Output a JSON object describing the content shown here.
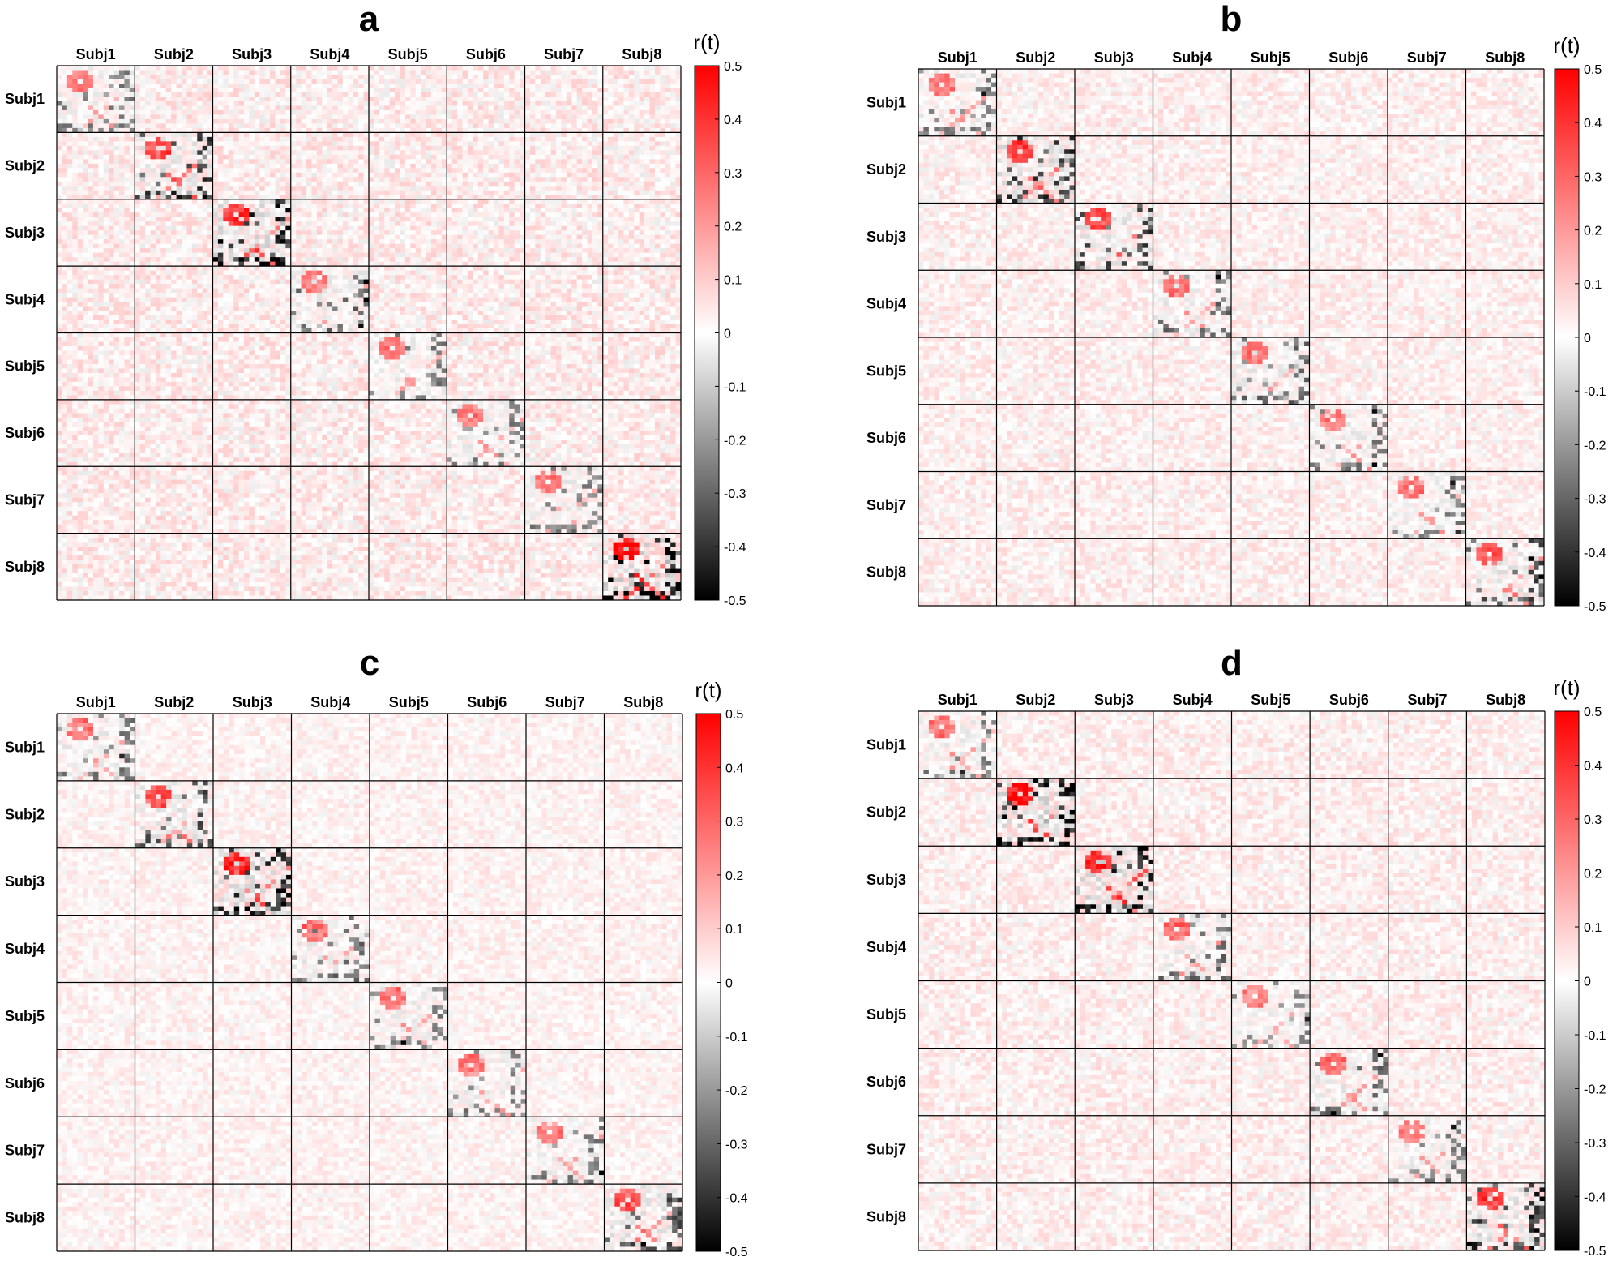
{
  "chart_data": [
    {
      "panel": "a",
      "type": "heatmap",
      "title": "a",
      "rows": [
        "Subj1",
        "Subj2",
        "Subj3",
        "Subj4",
        "Subj5",
        "Subj6",
        "Subj7",
        "Subj8"
      ],
      "columns": [
        "Subj1",
        "Subj2",
        "Subj3",
        "Subj4",
        "Subj5",
        "Subj6",
        "Subj7",
        "Subj8"
      ],
      "block_size": 15,
      "colorbar": {
        "label": "r(t)",
        "ticks": [
          0.5,
          0.4,
          0.3,
          0.2,
          0.1,
          0,
          -0.1,
          -0.2,
          -0.3,
          -0.4,
          -0.5
        ],
        "tick_labels": [
          "0.5",
          "0.4",
          "0.3",
          "0.2",
          "0.1",
          "0",
          "-0.1",
          "-0.2",
          "-0.3",
          "-0.4",
          "-0.5"
        ],
        "range": [
          -0.5,
          0.5
        ],
        "colormap": [
          "#000000",
          "#ffffff",
          "#ff0000"
        ]
      },
      "diagonal_block_strength": [
        0.45,
        0.7,
        0.8,
        0.5,
        0.45,
        0.45,
        0.45,
        0.95
      ],
      "off_diagonal_noise": 0.06
    },
    {
      "panel": "b",
      "type": "heatmap",
      "title": "b",
      "rows": [
        "Subj1",
        "Subj2",
        "Subj3",
        "Subj4",
        "Subj5",
        "Subj6",
        "Subj7",
        "Subj8"
      ],
      "columns": [
        "Subj1",
        "Subj2",
        "Subj3",
        "Subj4",
        "Subj5",
        "Subj6",
        "Subj7",
        "Subj8"
      ],
      "block_size": 15,
      "colorbar": {
        "label": "r(t)",
        "ticks": [
          0.5,
          0.4,
          0.3,
          0.2,
          0.1,
          0,
          -0.1,
          -0.2,
          -0.3,
          -0.4,
          -0.5
        ],
        "tick_labels": [
          "0.5",
          "0.4",
          "0.3",
          "0.2",
          "0.1",
          "0",
          "-0.1",
          "-0.2",
          "-0.3",
          "-0.4",
          "-0.5"
        ],
        "range": [
          -0.5,
          0.5
        ],
        "colormap": [
          "#000000",
          "#ffffff",
          "#ff0000"
        ]
      },
      "diagonal_block_strength": [
        0.45,
        0.7,
        0.65,
        0.5,
        0.5,
        0.45,
        0.45,
        0.6
      ],
      "off_diagonal_noise": 0.05
    },
    {
      "panel": "c",
      "type": "heatmap",
      "title": "c",
      "rows": [
        "Subj1",
        "Subj2",
        "Subj3",
        "Subj4",
        "Subj5",
        "Subj6",
        "Subj7",
        "Subj8"
      ],
      "columns": [
        "Subj1",
        "Subj2",
        "Subj3",
        "Subj4",
        "Subj5",
        "Subj6",
        "Subj7",
        "Subj8"
      ],
      "block_size": 15,
      "colorbar": {
        "label": "r(t)",
        "ticks": [
          0.5,
          0.4,
          0.3,
          0.2,
          0.1,
          0,
          -0.1,
          -0.2,
          -0.3,
          -0.4,
          -0.5
        ],
        "tick_labels": [
          "0.5",
          "0.4",
          "0.3",
          "0.2",
          "0.1",
          "0",
          "-0.1",
          "-0.2",
          "-0.3",
          "-0.4",
          "-0.5"
        ],
        "range": [
          -0.5,
          0.5
        ],
        "colormap": [
          "#000000",
          "#ffffff",
          "#ff0000"
        ]
      },
      "diagonal_block_strength": [
        0.45,
        0.6,
        0.75,
        0.5,
        0.45,
        0.45,
        0.45,
        0.6
      ],
      "off_diagonal_noise": 0.04
    },
    {
      "panel": "d",
      "type": "heatmap",
      "title": "d",
      "rows": [
        "Subj1",
        "Subj2",
        "Subj3",
        "Subj4",
        "Subj5",
        "Subj6",
        "Subj7",
        "Subj8"
      ],
      "columns": [
        "Subj1",
        "Subj2",
        "Subj3",
        "Subj4",
        "Subj5",
        "Subj6",
        "Subj7",
        "Subj8"
      ],
      "block_size": 15,
      "colorbar": {
        "label": "r(t)",
        "ticks": [
          0.5,
          0.4,
          0.3,
          0.2,
          0.1,
          0,
          -0.1,
          -0.2,
          -0.3,
          -0.4,
          -0.5
        ],
        "tick_labels": [
          "0.5",
          "0.4",
          "0.3",
          "0.2",
          "0.1",
          "0",
          "-0.1",
          "-0.2",
          "-0.3",
          "-0.4",
          "-0.5"
        ],
        "range": [
          -0.5,
          0.5
        ],
        "colormap": [
          "#000000",
          "#ffffff",
          "#ff0000"
        ]
      },
      "diagonal_block_strength": [
        0.45,
        0.85,
        0.85,
        0.5,
        0.4,
        0.5,
        0.45,
        0.7
      ],
      "off_diagonal_noise": 0.05
    }
  ]
}
